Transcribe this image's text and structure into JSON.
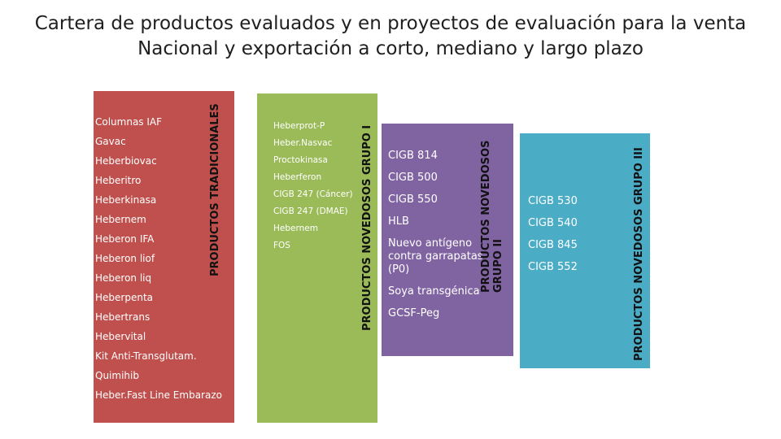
{
  "title": {
    "line1": "Cartera de productos evaluados y en proyectos de evaluación   para la venta",
    "line2": "Nacional y exportación a corto, mediano y largo plazo"
  },
  "colors": {
    "red": "#c0504d",
    "green": "#9bbb59",
    "purple": "#8064a2",
    "blue": "#4bacc6"
  },
  "groups": {
    "traditional": {
      "label": "PRODUCTOS TRADICIONALES",
      "items": [
        "Columnas IAF",
        "Gavac",
        "Heberbiovac",
        "Heberitro",
        "Heberkinasa",
        "Hebernem",
        "Heberon IFA",
        "Heberon liof",
        "Heberon liq",
        "Heberpenta",
        "Hebertrans",
        "Hebervital",
        "Kit Anti-Transglutam.",
        "Quimihib",
        "Heber.Fast Line Embarazo"
      ]
    },
    "group1": {
      "label": "PRODUCTOS NOVEDOSOS GRUPO I",
      "items": [
        "Heberprot-P",
        "Heber.Nasvac",
        "Proctokinasa",
        "Heberferon",
        "CIGB 247 (Cáncer)",
        "CIGB 247 (DMAE)",
        "Hebernem",
        "FOS"
      ]
    },
    "group2": {
      "label": "PRODUCTOS NOVEDOSOS GRUPO II",
      "items": [
        "CIGB 814",
        "CIGB 500",
        "CIGB 550",
        "HLB",
        "Nuevo antígeno contra garrapatas (P0)",
        "Soya transgénica",
        "GCSF-Peg"
      ]
    },
    "group3": {
      "label": "PRODUCTOS NOVEDOSOS GRUPO III",
      "items": [
        "CIGB 530",
        "CIGB 540",
        "CIGB 845",
        "CIGB 552"
      ]
    }
  }
}
